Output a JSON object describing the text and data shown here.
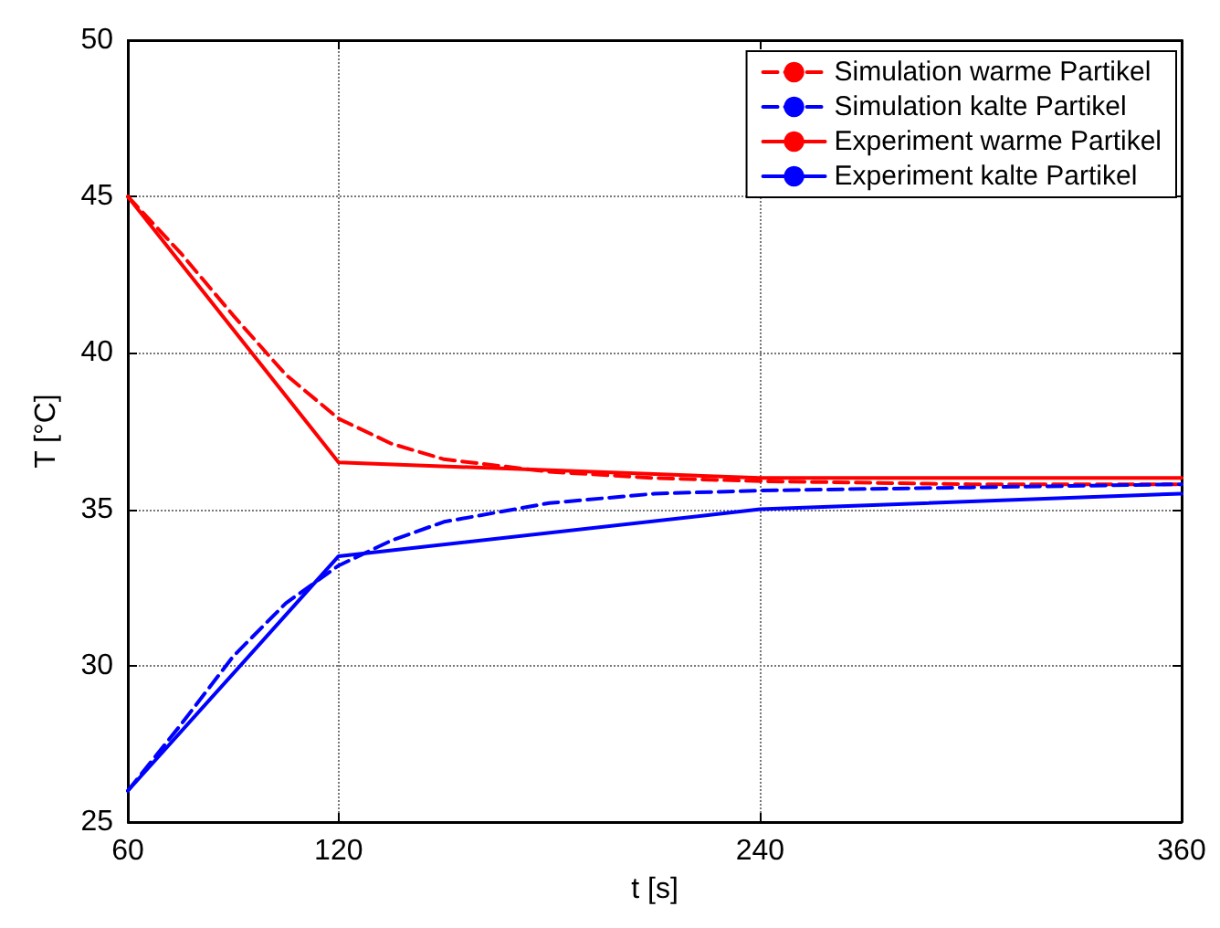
{
  "chart_data": {
    "type": "line",
    "xlabel": "t [s]",
    "ylabel": "T [°C]",
    "xlim": [
      60,
      360
    ],
    "xticks": [
      60,
      120,
      240,
      360
    ],
    "ylim": [
      25,
      50
    ],
    "yticks": [
      25,
      30,
      35,
      40,
      45,
      50
    ],
    "grid": true,
    "legend": "top right",
    "marker": "none",
    "series": [
      {
        "name": "Simulation warme Partikel",
        "color": "#ff0000",
        "line_style": "dashed",
        "x": [
          60,
          75,
          90,
          105,
          120,
          135,
          150,
          180,
          210,
          240,
          300,
          360
        ],
        "values": [
          45,
          43.2,
          41.2,
          39.3,
          37.9,
          37.1,
          36.6,
          36.2,
          36,
          35.9,
          35.8,
          35.8
        ]
      },
      {
        "name": "Simulation kalte Partikel",
        "color": "#0000ff",
        "line_style": "dashed",
        "x": [
          60,
          75,
          90,
          105,
          120,
          135,
          150,
          180,
          210,
          240,
          300,
          360
        ],
        "values": [
          26,
          28.1,
          30.3,
          32,
          33.2,
          34,
          34.6,
          35.2,
          35.5,
          35.6,
          35.7,
          35.8
        ]
      },
      {
        "name": "Experiment warme Partikel",
        "color": "#ff0000",
        "line_style": "solid",
        "x": [
          60,
          120,
          240,
          360
        ],
        "values": [
          45,
          36.5,
          36,
          36
        ]
      },
      {
        "name": "Experiment kalte Partikel",
        "color": "#0000ff",
        "line_style": "solid",
        "x": [
          60,
          120,
          240,
          360
        ],
        "values": [
          26,
          33.5,
          35,
          35.5
        ]
      }
    ]
  }
}
